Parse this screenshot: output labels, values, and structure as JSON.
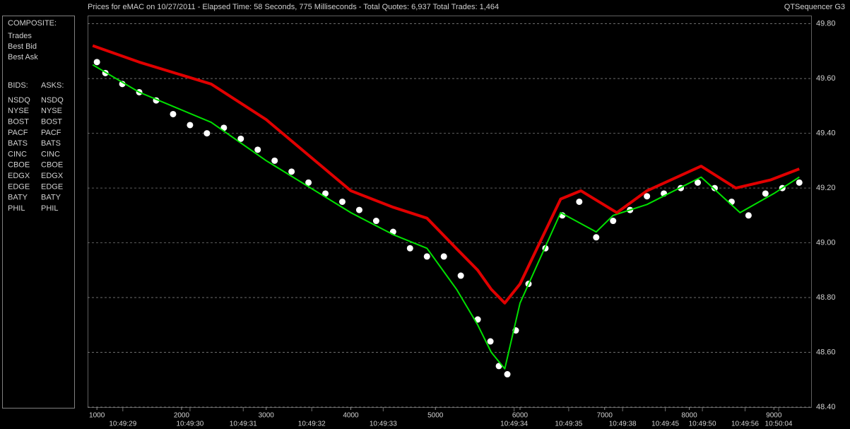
{
  "chart_data": {
    "type": "line",
    "title": "Prices for  eMAC  on  10/27/2011  -  Elapsed Time: 58 Seconds, 775 Milliseconds  -  Total Quotes: 6,937  Total Trades: 1,464",
    "app_name": "QTSequencer G3",
    "composite_header": "COMPOSITE:",
    "bids_header": "BIDS:",
    "asks_header": "ASKS:",
    "series": [
      {
        "name": "Trades",
        "color": "#ffffff",
        "style": "dots",
        "x": [
          1000,
          1100,
          1300,
          1500,
          1700,
          1900,
          2100,
          2300,
          2500,
          2700,
          2900,
          3100,
          3300,
          3500,
          3700,
          3900,
          4100,
          4300,
          4500,
          4700,
          4900,
          5100,
          5300,
          5500,
          5650,
          5750,
          5850,
          5950,
          6100,
          6300,
          6500,
          6700,
          6900,
          7100,
          7300,
          7500,
          7700,
          7900,
          8100,
          8300,
          8500,
          8700,
          8900,
          9100,
          9300
        ],
        "values": [
          49.66,
          49.62,
          49.58,
          49.55,
          49.52,
          49.47,
          49.43,
          49.4,
          49.42,
          49.38,
          49.34,
          49.3,
          49.26,
          49.22,
          49.18,
          49.15,
          49.12,
          49.08,
          49.04,
          48.98,
          48.95,
          48.95,
          48.88,
          48.72,
          48.64,
          48.55,
          48.52,
          48.68,
          48.85,
          48.98,
          49.1,
          49.15,
          49.02,
          49.08,
          49.12,
          49.17,
          49.18,
          49.2,
          49.22,
          49.2,
          49.15,
          49.1,
          49.18,
          49.2,
          49.22
        ]
      },
      {
        "name": "Best Bid",
        "color": "#00e000",
        "style": "line",
        "x": [
          950,
          1500,
          2350,
          3000,
          4000,
          4500,
          4900,
          5250,
          5500,
          5660,
          5820,
          6000,
          6480,
          6900,
          7100,
          7500,
          8140,
          8600,
          9000,
          9300
        ],
        "values": [
          49.65,
          49.55,
          49.44,
          49.3,
          49.11,
          49.03,
          48.98,
          48.83,
          48.7,
          48.6,
          48.54,
          48.78,
          49.11,
          49.04,
          49.1,
          49.14,
          49.24,
          49.11,
          49.18,
          49.24
        ]
      },
      {
        "name": "Best Ask",
        "color": "#e00000",
        "style": "line",
        "x": [
          950,
          1500,
          2350,
          3000,
          4000,
          4500,
          4900,
          5245,
          5500,
          5660,
          5820,
          6000,
          6480,
          6720,
          7145,
          7500,
          8140,
          8550,
          8965,
          9300
        ],
        "values": [
          49.72,
          49.66,
          49.58,
          49.45,
          49.19,
          49.13,
          49.09,
          48.98,
          48.9,
          48.83,
          48.78,
          48.85,
          49.16,
          49.19,
          49.11,
          49.19,
          49.28,
          49.2,
          49.23,
          49.27
        ]
      }
    ],
    "bids": [
      {
        "name": "NSDQ",
        "color": "#4a7fff"
      },
      {
        "name": "NYSE",
        "color": "#e8ffb0"
      },
      {
        "name": "BOST",
        "color": "#c0c0c0"
      },
      {
        "name": "PACF",
        "color": "#40e0ff"
      },
      {
        "name": "BATS",
        "color": "#a8c8ff"
      },
      {
        "name": "CINC",
        "color": "#4a90a0"
      },
      {
        "name": "CBOE",
        "color": "#2050b0"
      },
      {
        "name": "EDGX",
        "color": "#30a030"
      },
      {
        "name": "EDGE",
        "color": "#70c070"
      },
      {
        "name": "BATY",
        "color": "#5080c0"
      },
      {
        "name": "PHIL",
        "color": "#80b040"
      }
    ],
    "asks": [
      {
        "name": "NSDQ",
        "color": "#ff9040"
      },
      {
        "name": "NYSE",
        "color": "#ff8080"
      },
      {
        "name": "BOST",
        "color": "#c08060"
      },
      {
        "name": "PACF",
        "color": "#ffff40"
      },
      {
        "name": "BATS",
        "color": "#ffc060"
      },
      {
        "name": "CINC",
        "color": "#a08040"
      },
      {
        "name": "CBOE",
        "color": "#d09020"
      },
      {
        "name": "EDGX",
        "color": "#e06030"
      },
      {
        "name": "EDGE",
        "color": "#c04040"
      },
      {
        "name": "BATY",
        "color": "#ff4040"
      },
      {
        "name": "PHIL",
        "color": "#c04080"
      }
    ],
    "xlim": [
      890,
      9440
    ],
    "xticks": [
      1000,
      2000,
      3000,
      4000,
      5000,
      6000,
      7000,
      8000,
      9000
    ],
    "time_ticks": [
      {
        "value": 1306,
        "label": "10:49:29"
      },
      {
        "value": 2100,
        "label": "10:49:30"
      },
      {
        "value": 2729,
        "label": "10:49:31"
      },
      {
        "value": 3539,
        "label": "10:49:32"
      },
      {
        "value": 4383,
        "label": "10:49:33"
      },
      {
        "value": 5930,
        "label": "10:49:34"
      },
      {
        "value": 6575,
        "label": "10:49:35"
      },
      {
        "value": 7212,
        "label": "10:49:38"
      },
      {
        "value": 7717,
        "label": "10:49:45"
      },
      {
        "value": 8155,
        "label": "10:49:50"
      },
      {
        "value": 8659,
        "label": "10:49:56"
      },
      {
        "value": 9056,
        "label": "10:50:04"
      }
    ],
    "ylim": [
      48.4,
      49.83
    ],
    "yticks": [
      {
        "value": 48.4,
        "label": "48.40"
      },
      {
        "value": 48.6,
        "label": "48.60"
      },
      {
        "value": 48.8,
        "label": "48.80"
      },
      {
        "value": 49.0,
        "label": "49.00"
      },
      {
        "value": 49.2,
        "label": "49.20"
      },
      {
        "value": 49.4,
        "label": "49.40"
      },
      {
        "value": 49.6,
        "label": "49.60"
      },
      {
        "value": 49.8,
        "label": "49.80"
      }
    ],
    "grid": true
  }
}
